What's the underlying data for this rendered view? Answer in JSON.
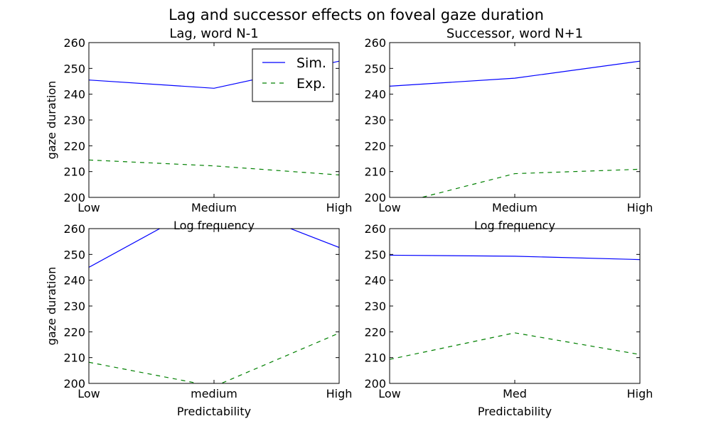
{
  "figure": {
    "title": "Lag and successor effects on foveal gaze duration"
  },
  "colors": {
    "sim": "#0000ff",
    "exp": "#008000",
    "axes": "#000000",
    "background": "#ffffff"
  },
  "chart_data": [
    {
      "type": "line",
      "title": "Lag, word N-1",
      "xlabel": "Log frequency",
      "ylabel": "gaze duration",
      "categories": [
        "Low",
        "Medium",
        "High"
      ],
      "ylim": [
        200,
        260
      ],
      "yticks": [
        "200",
        "210",
        "220",
        "230",
        "240",
        "250",
        "260"
      ],
      "grid": false,
      "legend": {
        "placement": "top-right",
        "entries": [
          "Sim.",
          "Exp."
        ]
      },
      "series": [
        {
          "name": "Sim.",
          "style": "solid",
          "values": [
            245.5,
            242.3,
            252.8
          ]
        },
        {
          "name": "Exp.",
          "style": "dashed",
          "values": [
            214.5,
            212.2,
            208.7
          ]
        }
      ]
    },
    {
      "type": "line",
      "title": "Successor, word N+1",
      "xlabel": "Log frequency",
      "ylabel": "",
      "categories": [
        "Low",
        "Medium",
        "High"
      ],
      "ylim": [
        200,
        260
      ],
      "yticks": [
        "200",
        "210",
        "220",
        "230",
        "240",
        "250",
        "260"
      ],
      "grid": false,
      "series": [
        {
          "name": "Sim.",
          "style": "solid",
          "values": [
            243.1,
            246.2,
            252.8
          ]
        },
        {
          "name": "Exp.",
          "style": "dashed",
          "values": [
            196.8,
            209.2,
            210.9
          ]
        }
      ]
    },
    {
      "type": "line",
      "title": "",
      "xlabel": "Predictability",
      "ylabel": "gaze duration",
      "categories": [
        "Low",
        "medium",
        "High"
      ],
      "ylim": [
        200,
        260
      ],
      "yticks": [
        "200",
        "210",
        "220",
        "230",
        "240",
        "250",
        "260"
      ],
      "grid": false,
      "series": [
        {
          "name": "Sim.",
          "style": "solid",
          "values": [
            245.0,
            271.5,
            252.7
          ]
        },
        {
          "name": "Exp.",
          "style": "dashed",
          "values": [
            208.2,
            198.8,
            219.5
          ]
        }
      ]
    },
    {
      "type": "line",
      "title": "",
      "xlabel": "Predictability",
      "ylabel": "",
      "categories": [
        "Low",
        "Med",
        "High"
      ],
      "ylim": [
        200,
        260
      ],
      "yticks": [
        "200",
        "210",
        "220",
        "230",
        "240",
        "250",
        "260"
      ],
      "grid": false,
      "series": [
        {
          "name": "Sim.",
          "style": "solid",
          "values": [
            249.7,
            249.3,
            248.0
          ]
        },
        {
          "name": "Exp.",
          "style": "dashed",
          "values": [
            209.3,
            219.6,
            211.2
          ]
        }
      ]
    }
  ]
}
